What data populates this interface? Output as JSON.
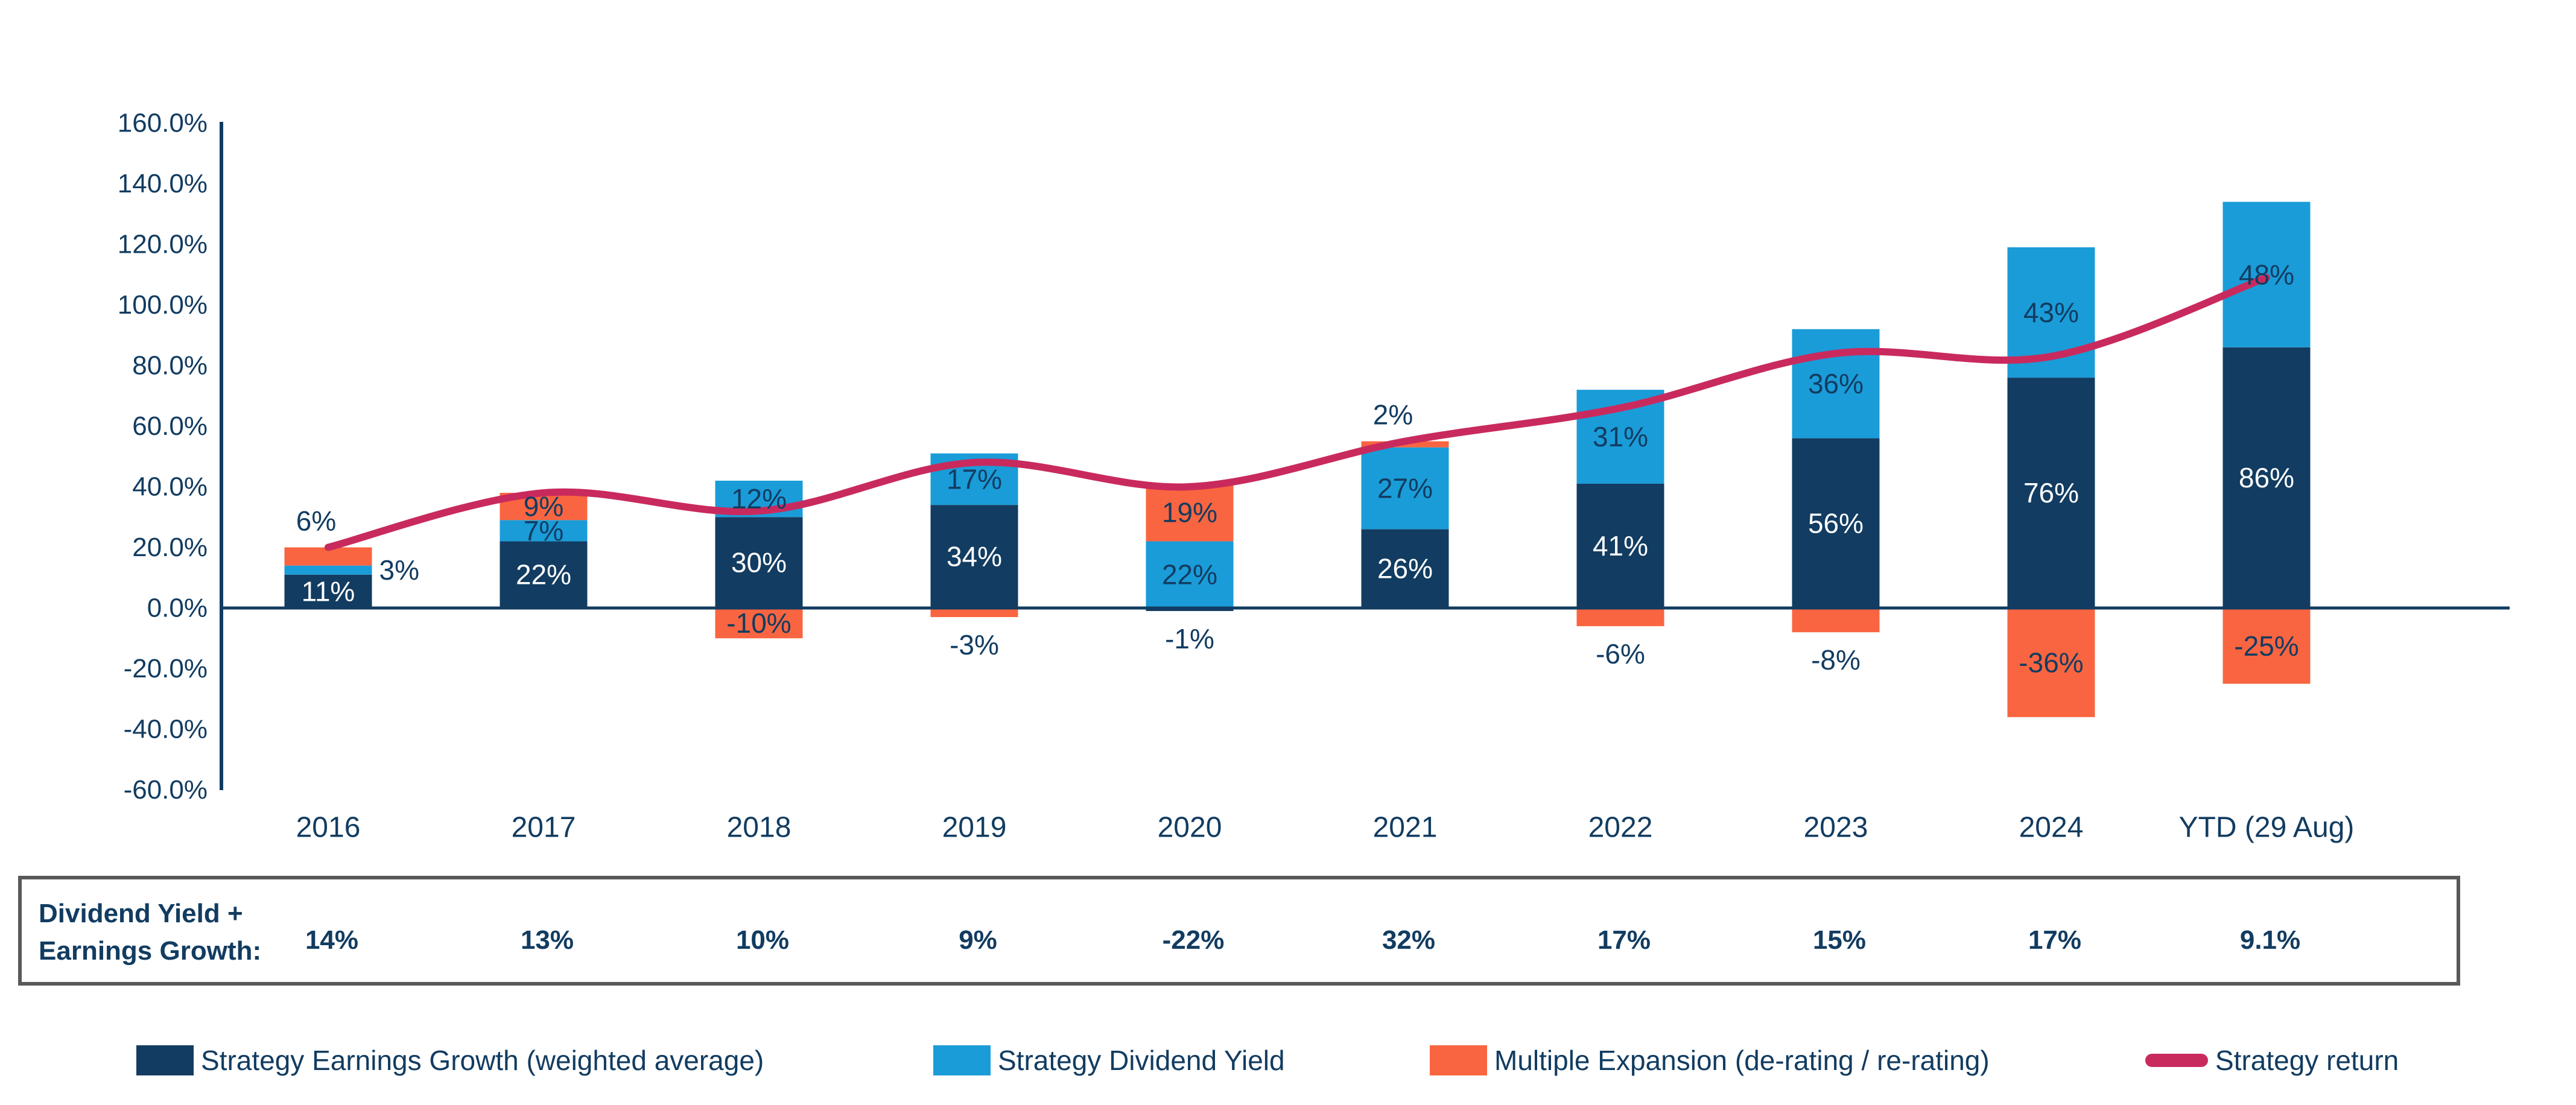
{
  "chart_data": {
    "type": "bar",
    "subtype": "stacked-bars-with-line-overlay",
    "title": "",
    "xlabel": "",
    "ylabel": "",
    "categories": [
      "2016",
      "2017",
      "2018",
      "2019",
      "2020",
      "2021",
      "2022",
      "2023",
      "2024",
      "YTD (29 Aug)"
    ],
    "series": [
      {
        "name": "Strategy Earnings Growth (weighted average)",
        "role": "bar",
        "values": [
          11,
          22,
          30,
          34,
          -1,
          26,
          41,
          56,
          76,
          86
        ]
      },
      {
        "name": "Strategy Dividend Yield",
        "role": "bar",
        "values": [
          3,
          7,
          12,
          17,
          22,
          27,
          31,
          36,
          43,
          48
        ]
      },
      {
        "name": "Multiple Expansion (de-rating / re-rating)",
        "role": "bar",
        "values": [
          6,
          9,
          -10,
          -3,
          19,
          2,
          -6,
          -8,
          -36,
          -25
        ]
      },
      {
        "name": "Strategy return",
        "role": "line",
        "values": [
          20,
          38,
          32,
          48,
          40,
          55,
          66,
          84,
          83,
          109
        ]
      }
    ],
    "bar_label_suffix": "%",
    "ylim": [
      -60,
      160
    ],
    "ytick_step": 20,
    "ytick_labels": [
      "160.0%",
      "140.0%",
      "120.0%",
      "100.0%",
      "80.0%",
      "60.0%",
      "40.0%",
      "20.0%",
      "0.0%",
      "-20.0%",
      "-40.0%",
      "-60.0%"
    ],
    "grid": false,
    "legend_position": "bottom"
  },
  "colors": {
    "earnings_growth": "#123C61",
    "dividend_yield": "#1A9CD8",
    "multiple_expansion": "#F96540",
    "strategy_return": "#C92A5E",
    "axis": "#123C61",
    "label_navy": "#123C61",
    "label_white": "#FFFFFF",
    "table_border": "#595959"
  },
  "summary_table": {
    "label_line1": "Dividend Yield +",
    "label_line2": "Earnings Growth:",
    "values": [
      "14%",
      "13%",
      "10%",
      "9%",
      "-22%",
      "32%",
      "17%",
      "15%",
      "17%",
      "9.1%"
    ]
  },
  "legend": {
    "items": [
      {
        "label": "Strategy Earnings Growth (weighted average)",
        "swatch": "square",
        "color_key": "earnings_growth"
      },
      {
        "label": "Strategy Dividend Yield",
        "swatch": "square",
        "color_key": "dividend_yield"
      },
      {
        "label": "Multiple Expansion (de-rating / re-rating)",
        "swatch": "square",
        "color_key": "multiple_expansion"
      },
      {
        "label": "Strategy return",
        "swatch": "line",
        "color_key": "strategy_return"
      }
    ]
  }
}
